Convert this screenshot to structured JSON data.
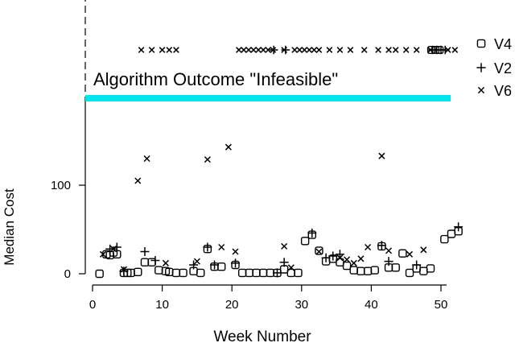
{
  "chart_data": {
    "type": "scatter",
    "xlabel": "Week Number",
    "ylabel": "Median Cost",
    "x_ticks": [
      0,
      10,
      20,
      30,
      40,
      50
    ],
    "y_ticks": [
      0,
      100
    ],
    "xlim": [
      -1,
      54
    ],
    "ylim": [
      -8,
      195
    ],
    "legend_position": "right",
    "infeasible_band": {
      "label": "Algorithm Outcome \"Infeasible\"",
      "color": "#00e5ee"
    },
    "series": [
      {
        "name": "V4",
        "marker": "square",
        "values": [
          [
            1,
            0
          ],
          [
            2,
            22
          ],
          [
            2.5,
            21
          ],
          [
            3,
            24
          ],
          [
            3.5,
            22
          ],
          [
            4.5,
            1
          ],
          [
            5,
            1
          ],
          [
            5.5,
            1
          ],
          [
            6.5,
            2
          ],
          [
            7.5,
            13
          ],
          [
            8.5,
            13
          ],
          [
            9.5,
            4
          ],
          [
            10.5,
            3
          ],
          [
            11,
            2
          ],
          [
            12,
            1
          ],
          [
            13,
            1
          ],
          [
            14.5,
            3
          ],
          [
            15.5,
            1
          ],
          [
            16.5,
            28
          ],
          [
            17.5,
            8
          ],
          [
            18.5,
            8
          ],
          [
            20.5,
            10
          ],
          [
            21.5,
            1
          ],
          [
            22.5,
            1
          ],
          [
            23.5,
            1
          ],
          [
            24.5,
            1
          ],
          [
            25.5,
            1
          ],
          [
            26.5,
            1
          ],
          [
            27.5,
            5
          ],
          [
            28.5,
            1
          ],
          [
            29.5,
            1
          ],
          [
            30.5,
            37
          ],
          [
            31.5,
            44
          ],
          [
            32.5,
            26
          ],
          [
            33.5,
            14
          ],
          [
            34.5,
            17
          ],
          [
            35.5,
            13
          ],
          [
            36.5,
            9
          ],
          [
            37.5,
            4
          ],
          [
            38.5,
            3
          ],
          [
            39.5,
            3
          ],
          [
            40.5,
            4
          ],
          [
            41.5,
            31
          ],
          [
            42.5,
            7
          ],
          [
            43.5,
            7
          ],
          [
            44.5,
            23
          ],
          [
            45.5,
            1
          ],
          [
            46.5,
            6
          ],
          [
            47.5,
            3
          ],
          [
            48.5,
            6
          ],
          [
            50.5,
            39
          ],
          [
            51.5,
            45
          ],
          [
            52.5,
            48
          ]
        ]
      },
      {
        "name": "V2",
        "marker": "plus",
        "values": [
          [
            2.5,
            28
          ],
          [
            3.5,
            30
          ],
          [
            4.5,
            3
          ],
          [
            7.5,
            25
          ],
          [
            9,
            15
          ],
          [
            14.5,
            10
          ],
          [
            16.5,
            30
          ],
          [
            17.5,
            10
          ],
          [
            20.5,
            12
          ],
          [
            26.5,
            1
          ],
          [
            27.5,
            13
          ],
          [
            31.5,
            46
          ],
          [
            33.5,
            18
          ],
          [
            34.5,
            20
          ],
          [
            35.5,
            22
          ],
          [
            41.5,
            32
          ],
          [
            42.5,
            14
          ],
          [
            46.5,
            10
          ],
          [
            52.5,
            53
          ]
        ]
      },
      {
        "name": "V6",
        "marker": "x",
        "values": [
          [
            1.5,
            22
          ],
          [
            3,
            28
          ],
          [
            4.5,
            5
          ],
          [
            6.5,
            105
          ],
          [
            7.8,
            130
          ],
          [
            10.5,
            12
          ],
          [
            15,
            14
          ],
          [
            16.5,
            129
          ],
          [
            18.5,
            30
          ],
          [
            19.5,
            143
          ],
          [
            20.5,
            25
          ],
          [
            27.5,
            31
          ],
          [
            28.5,
            7
          ],
          [
            32.5,
            25
          ],
          [
            35.5,
            18
          ],
          [
            36.5,
            16
          ],
          [
            37.5,
            12
          ],
          [
            38.5,
            17
          ],
          [
            39.5,
            30
          ],
          [
            41.5,
            133
          ],
          [
            42.5,
            26
          ],
          [
            45.5,
            22
          ],
          [
            47.5,
            27
          ]
        ]
      }
    ]
  }
}
